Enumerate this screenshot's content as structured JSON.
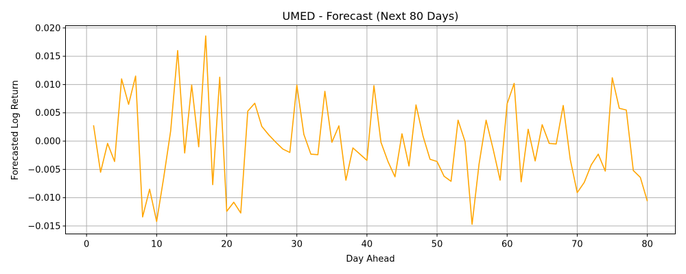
{
  "chart_data": {
    "type": "line",
    "title": "UMED - Forecast (Next 80 Days)",
    "xlabel": "Day Ahead",
    "ylabel": "Forecasted Log Return",
    "xlim": [
      -3,
      84
    ],
    "ylim": [
      -0.0164,
      0.0204
    ],
    "xticks": [
      0,
      10,
      20,
      30,
      40,
      50,
      60,
      70,
      80
    ],
    "xtick_labels": [
      "0",
      "10",
      "20",
      "30",
      "40",
      "50",
      "60",
      "70",
      "80"
    ],
    "yticks": [
      -0.015,
      -0.01,
      -0.005,
      0.0,
      0.005,
      0.01,
      0.015,
      0.02
    ],
    "ytick_labels": [
      "−0.015",
      "−0.010",
      "−0.005",
      "0.000",
      "0.005",
      "0.010",
      "0.015",
      "0.020"
    ],
    "grid": true,
    "line_color": "#ffa500",
    "series": [
      {
        "x": [
          1,
          2,
          3,
          4,
          5,
          6,
          7,
          8,
          9,
          10,
          11,
          12,
          13,
          14,
          15,
          16,
          17,
          18,
          19,
          20,
          21,
          22,
          23,
          24,
          25,
          26,
          27,
          28,
          29,
          30,
          31,
          32,
          33,
          34,
          35,
          36,
          37,
          38,
          39,
          40,
          41,
          42,
          43,
          44,
          45,
          46,
          47,
          48,
          49,
          50,
          51,
          52,
          53,
          54,
          55,
          56,
          57,
          58,
          59,
          60,
          61,
          62,
          63,
          64,
          65,
          66,
          67,
          68,
          69,
          70,
          71,
          72,
          73,
          74,
          75,
          76,
          77,
          78,
          79,
          80
        ],
        "values": [
          0.0028,
          -0.0055,
          -0.0004,
          -0.0036,
          0.011,
          0.0065,
          0.0115,
          -0.0134,
          -0.0085,
          -0.0142,
          -0.0065,
          0.0018,
          0.016,
          -0.0021,
          0.0099,
          -0.001,
          0.0186,
          -0.0077,
          0.0113,
          -0.0124,
          -0.0108,
          -0.0127,
          0.0053,
          0.0067,
          0.0026,
          0.0011,
          -0.0002,
          -0.0014,
          -0.002,
          0.0099,
          0.0012,
          -0.0023,
          -0.0024,
          0.0088,
          -0.0002,
          0.0027,
          -0.0069,
          -0.0012,
          -0.0023,
          -0.0034,
          0.0098,
          -0.0002,
          -0.0036,
          -0.0063,
          0.0013,
          -0.0044,
          0.0064,
          0.0009,
          -0.0032,
          -0.0036,
          -0.0062,
          -0.0071,
          0.0037,
          -0.0001,
          -0.0147,
          -0.004,
          0.0037,
          -0.0014,
          -0.0069,
          0.0066,
          0.0102,
          -0.0072,
          0.0021,
          -0.0035,
          0.0029,
          -0.0004,
          -0.0005,
          0.0063,
          -0.0032,
          -0.0091,
          -0.0073,
          -0.0042,
          -0.0023,
          -0.0053,
          0.0112,
          0.0058,
          0.0055,
          -0.0052,
          -0.0064,
          -0.0106
        ]
      }
    ]
  }
}
